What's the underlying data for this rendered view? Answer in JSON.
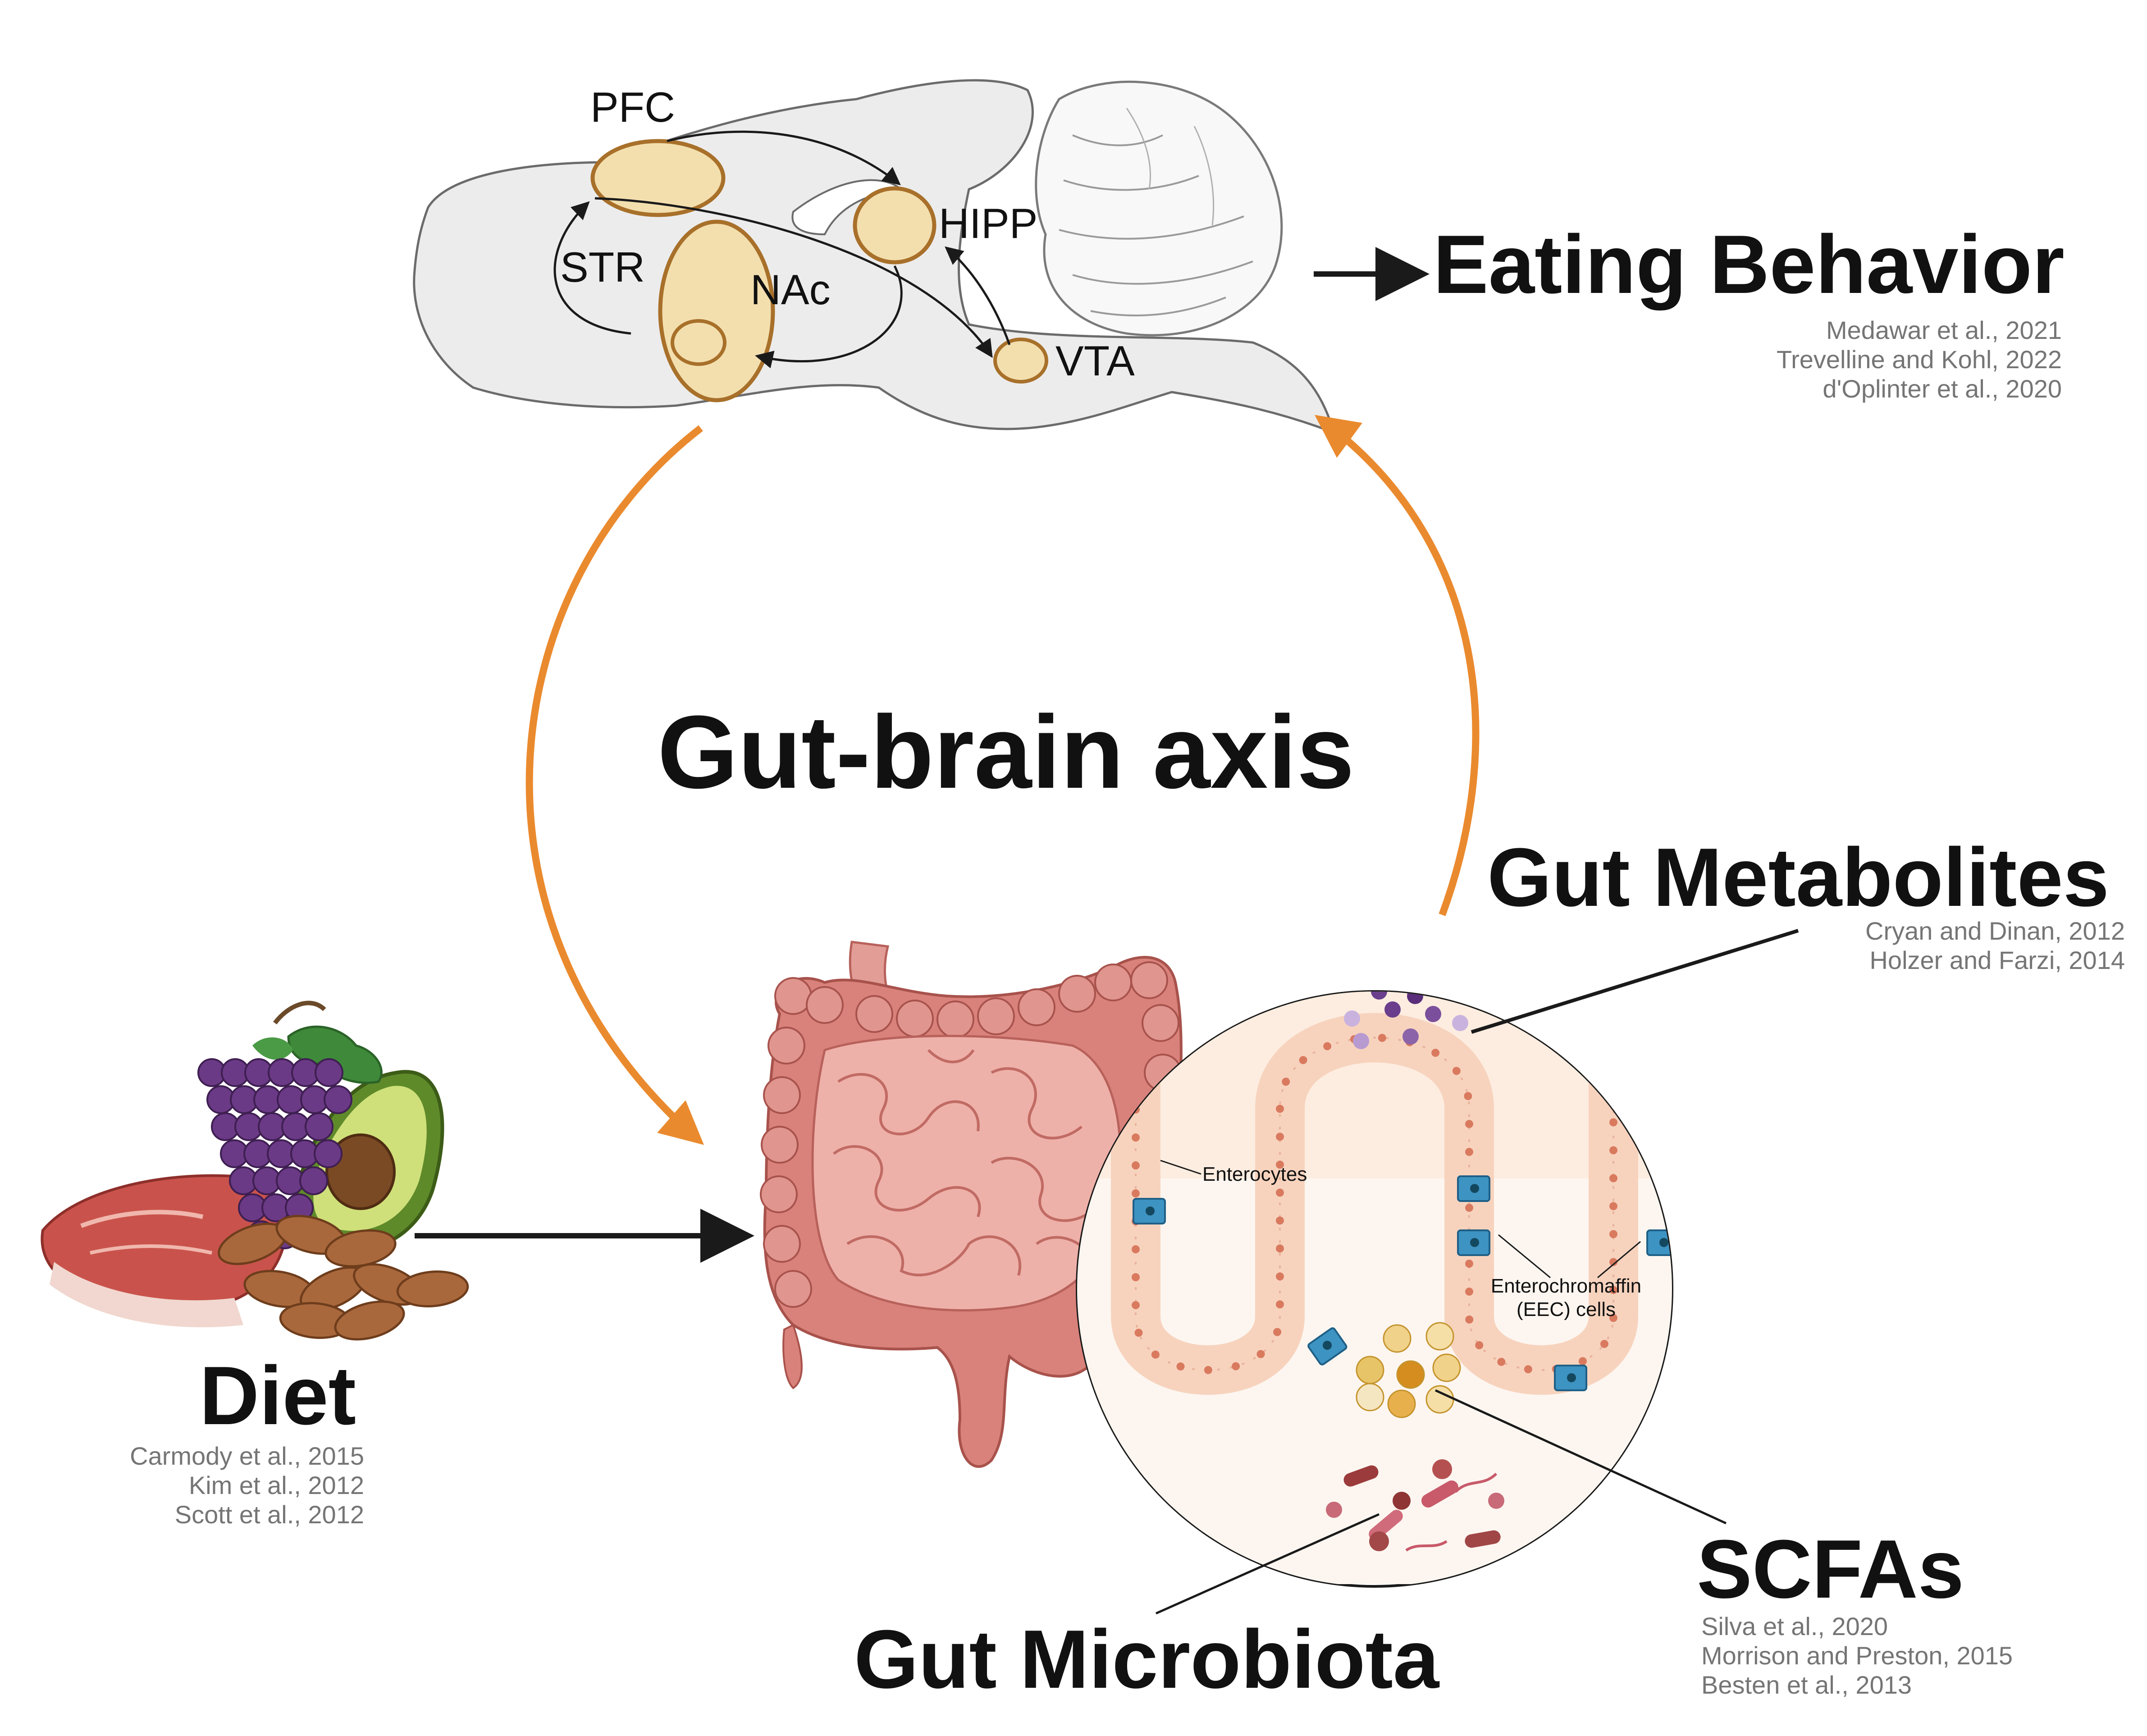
{
  "title": "Gut-brain axis",
  "brain": {
    "regions": [
      "PFC",
      "STR",
      "NAc",
      "HIPP",
      "VTA"
    ]
  },
  "eating_behavior": {
    "label": "Eating Behavior",
    "citations": [
      "Medawar et al., 2021",
      "Trevelline and Kohl, 2022",
      "d'Oplinter et al., 2020"
    ]
  },
  "diet": {
    "label": "Diet",
    "citations": [
      "Carmody et al., 2015",
      "Kim et al., 2012",
      "Scott et al., 2012"
    ]
  },
  "gut_metabolites": {
    "label": "Gut Metabolites",
    "citations": [
      "Cryan and Dinan, 2012",
      "Holzer and Farzi, 2014"
    ]
  },
  "scfas": {
    "label": "SCFAs",
    "citations": [
      "Silva et al., 2020",
      "Morrison and Preston, 2015",
      "Besten et al., 2013"
    ]
  },
  "gut_microbiota": {
    "label": "Gut Microbiota"
  },
  "inset_labels": {
    "enterocytes": "Enterocytes",
    "eec_line1": "Enterochromaffin",
    "eec_line2": "(EEC) cells"
  },
  "colors": {
    "axis_arrow": "#ea8a2e",
    "region_fill": "#f3dfae",
    "region_stroke": "#a8702a",
    "brain_fill": "#eaeaea",
    "intestine": "#e69a94"
  }
}
